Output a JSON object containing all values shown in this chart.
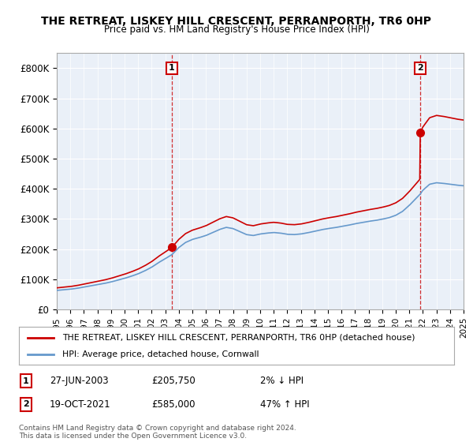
{
  "title": "THE RETREAT, LISKEY HILL CRESCENT, PERRANPORTH, TR6 0HP",
  "subtitle": "Price paid vs. HM Land Registry's House Price Index (HPI)",
  "legend_label_red": "THE RETREAT, LISKEY HILL CRESCENT, PERRANPORTH, TR6 0HP (detached house)",
  "legend_label_blue": "HPI: Average price, detached house, Cornwall",
  "annotation1_label": "1",
  "annotation1_date": "27-JUN-2003",
  "annotation1_price": "£205,750",
  "annotation1_hpi": "2% ↓ HPI",
  "annotation2_label": "2",
  "annotation2_date": "19-OCT-2021",
  "annotation2_price": "£585,000",
  "annotation2_hpi": "47% ↑ HPI",
  "footer": "Contains HM Land Registry data © Crown copyright and database right 2024.\nThis data is licensed under the Open Government Licence v3.0.",
  "ylim": [
    0,
    850000
  ],
  "yticks": [
    0,
    100000,
    200000,
    300000,
    400000,
    500000,
    600000,
    700000,
    800000
  ],
  "ytick_labels": [
    "£0",
    "£100K",
    "£200K",
    "£300K",
    "£400K",
    "£500K",
    "£600K",
    "£700K",
    "£800K"
  ],
  "color_red": "#cc0000",
  "color_blue": "#6699cc",
  "color_dashed": "#cc0000",
  "bg_color": "#ffffff",
  "plot_bg_color": "#eaf0f8",
  "grid_color": "#ffffff",
  "sale1_x": 2003.49,
  "sale1_y": 205750,
  "sale2_x": 2021.8,
  "sale2_y": 585000,
  "xmin": 1995,
  "xmax": 2025
}
